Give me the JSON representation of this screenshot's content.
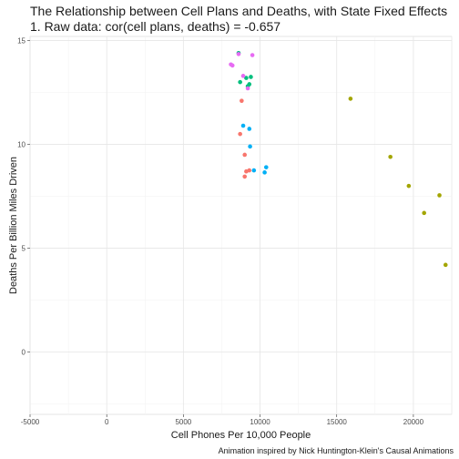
{
  "title": "The Relationship between Cell Plans and Deaths, with State Fixed Effects",
  "subtitle": "1. Raw data: cor(cell plans, deaths) = -0.657",
  "caption": "Animation inspired by Nick Huntington-Klein's Causal Animations",
  "colors": {
    "panel_background": "#ffffff",
    "grid_major": "#e6e6e6",
    "grid_minor": "#f2f2f2",
    "state_palette": [
      "#F8766D",
      "#A3A500",
      "#00BF7D",
      "#00B0F6",
      "#E76BF3"
    ]
  },
  "chart_data": {
    "type": "scatter",
    "title": "The Relationship between Cell Plans and Deaths, with State Fixed Effects",
    "subtitle": "1. Raw data: cor(cell plans, deaths) = -0.657",
    "xlabel": "Cell Phones Per 10,000 People",
    "ylabel": "Deaths Per Billion Miles Driven",
    "xlim": [
      -5000,
      22500
    ],
    "ylim": [
      -3.0,
      15.2
    ],
    "x_ticks": [
      -5000,
      0,
      5000,
      10000,
      15000,
      20000
    ],
    "x_tick_labels": [
      "-5000",
      "0",
      "5000",
      "10000",
      "15000",
      "20000"
    ],
    "y_ticks": [
      0,
      5,
      10,
      15
    ],
    "y_tick_labels": [
      "0",
      "5",
      "10",
      "15"
    ],
    "grid": true,
    "legend": "none",
    "series": [
      {
        "color": "#F8766D",
        "x": [
          8800,
          8700,
          9000,
          9100,
          9300,
          9000
        ],
        "y": [
          12.1,
          10.5,
          9.5,
          8.7,
          8.75,
          8.45
        ]
      },
      {
        "color": "#A3A500",
        "x": [
          15900,
          18500,
          19700,
          20700,
          21700,
          22100
        ],
        "y": [
          12.2,
          9.4,
          8.0,
          6.7,
          7.55,
          4.2
        ]
      },
      {
        "color": "#00BF7D",
        "x": [
          8600,
          9100,
          9200,
          9300,
          9400,
          8700
        ],
        "y": [
          14.4,
          13.2,
          12.8,
          12.9,
          13.25,
          13.0
        ]
      },
      {
        "color": "#00B0F6",
        "x": [
          8900,
          9300,
          9350,
          9600,
          10400,
          10300
        ],
        "y": [
          10.9,
          10.75,
          9.9,
          8.75,
          8.9,
          8.65
        ]
      },
      {
        "color": "#E76BF3",
        "x": [
          8600,
          9500,
          8100,
          8200,
          8900,
          9200
        ],
        "y": [
          14.35,
          14.3,
          13.85,
          13.8,
          13.3,
          12.7
        ]
      }
    ]
  }
}
